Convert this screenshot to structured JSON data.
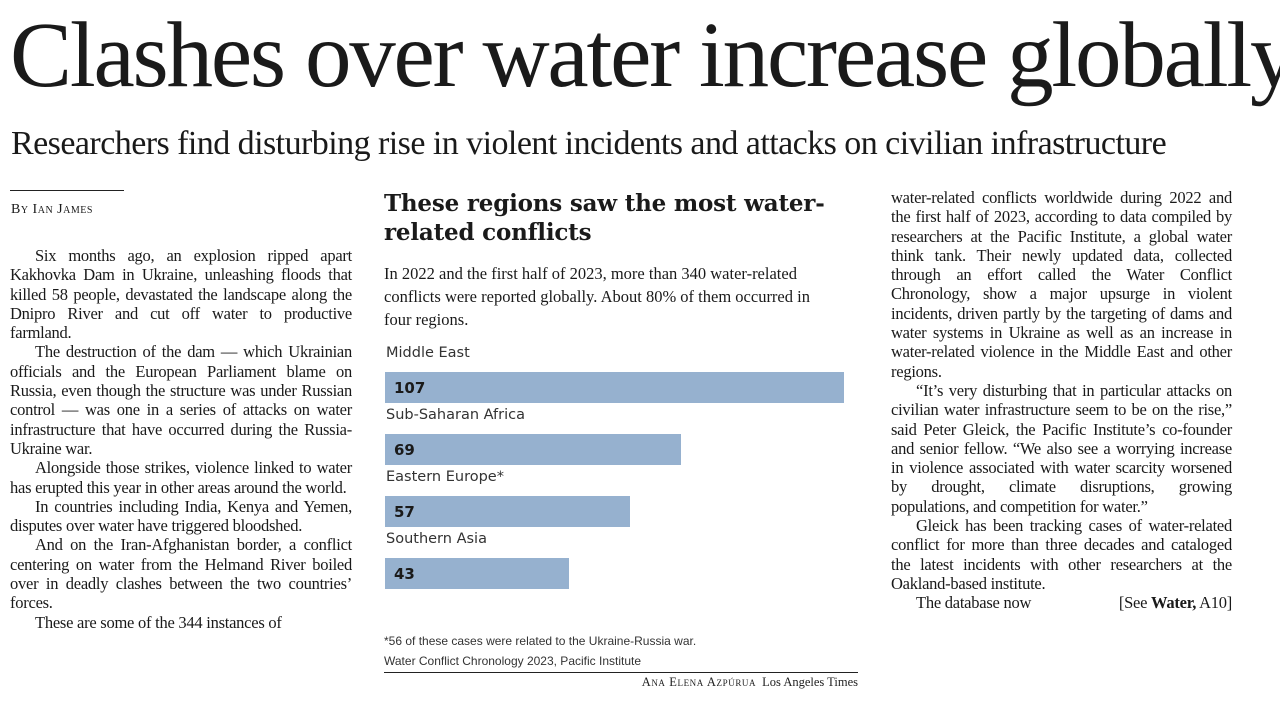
{
  "headline": "Clashes over water increase globally",
  "subheadline": "Researchers find disturbing rise in violent incidents and attacks on civilian infrastructure",
  "byline": "By Ian James",
  "left_column": [
    "Six months ago, an explosion ripped apart Kakhovka Dam in Ukraine, unleashing floods that killed 58 people, devastated the landscape along the Dnipro River and cut off water to productive farmland.",
    "The destruction of the dam — which Ukrainian officials and the European Parliament blame on Russia, even though the structure was under Russian control — was one in a series of attacks on water infrastructure that have occurred during the Russia-Ukraine war.",
    "Alongside those strikes, violence linked to water has erupted this year in other areas around the world.",
    "In countries including India, Kenya and Yemen, disputes over water have triggered bloodshed.",
    "And on the Iran-Afghanistan border, a conflict centering on water from the Helmand River boiled over in deadly clashes between the two countries’ forces.",
    "These are some of the 344 instances of"
  ],
  "right_column": [
    "water-related conflicts worldwide during 2022 and the first half of 2023, according to data compiled by researchers at the Pacific Institute, a global water think tank. Their newly updated data, collected through an effort called the Water Conflict Chronology, show a major upsurge in violent incidents, driven partly by the targeting of dams and water systems in Ukraine as well as an increase in water-related violence in the Middle East and other regions.",
    "“It’s very disturbing that in particular attacks on civilian water infrastructure seem to be on the rise,” said Peter Gleick, the Pacific Institute’s co-founder and senior fellow. “We also see a worrying increase in violence associated with water scarcity worsened by drought, climate disruptions, growing populations, and competition for water.”",
    "Gleick has been tracking cases of water-related conflict for more than three decades and cataloged the latest incidents with other researchers at the Oakland-based institute."
  ],
  "right_last_line": "The database now",
  "jump": {
    "prefix": "[See ",
    "section": "Water,",
    "page": " A10]"
  },
  "chart_data": {
    "type": "bar",
    "title": "These regions saw the most water-related conflicts",
    "description": "In 2022 and the first half of 2023, more than 340 water-related conflicts were reported globally. About 80% of them occurred in four regions.",
    "categories": [
      "Middle East",
      "Sub-Saharan Africa",
      "Eastern Europe*",
      "Southern Asia"
    ],
    "values": [
      107,
      69,
      57,
      43
    ],
    "xlim": [
      0,
      107
    ],
    "bar_color": "#96b1cf",
    "footnote": "*56 of these cases were related to the Ukraine-Russia war.",
    "source": "Water Conflict Chronology 2023, Pacific Institute",
    "credit_name": "Ana Elena Azpúrua",
    "credit_org": "Los Angeles Times"
  }
}
